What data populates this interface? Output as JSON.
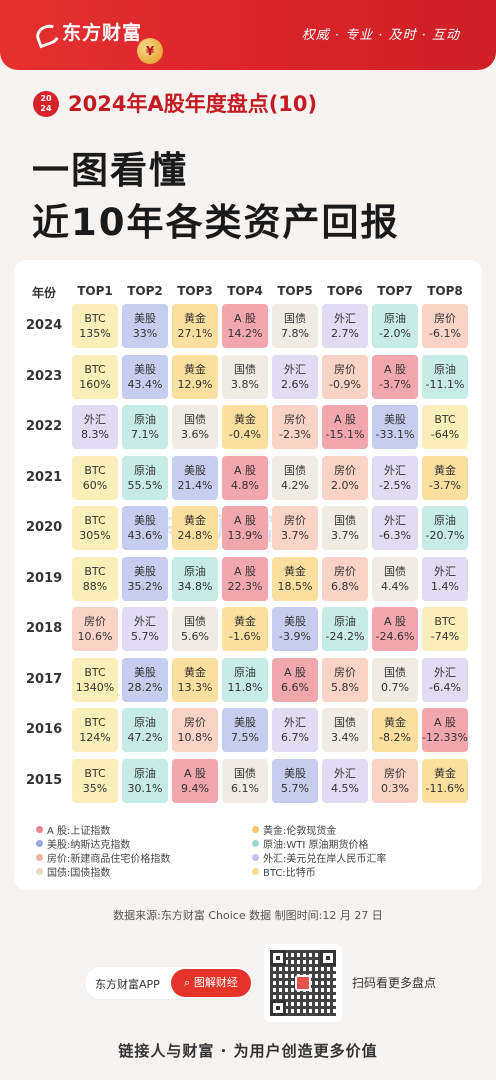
{
  "header": {
    "brand": "东方财富",
    "slogan": "权威 · 专业 · 及时 · 互动",
    "badge_top": "20",
    "badge_bottom": "24",
    "subtitle": "2024年A股年度盘点(10)",
    "headline_line1": "一图看懂",
    "headline_line2": "近10年各类资产回报",
    "coin_glyph": "¥"
  },
  "table": {
    "year_header": "年份",
    "columns": [
      "TOP1",
      "TOP2",
      "TOP3",
      "TOP4",
      "TOP5",
      "TOP6",
      "TOP7",
      "TOP8"
    ],
    "colors": {
      "BTC": "#fbefb9",
      "美股": "#c7cdee",
      "黄金": "#fbdf9e",
      "A 股": "#f2a6ae",
      "国债": "#f1ece3",
      "外汇": "#e2dcf2",
      "原油": "#c7ece6",
      "房价": "#f9d4c6"
    },
    "rows": [
      {
        "year": "2024",
        "cells": [
          [
            "BTC",
            "135%"
          ],
          [
            "美股",
            "33%"
          ],
          [
            "黄金",
            "27.1%"
          ],
          [
            "A 股",
            "14.2%"
          ],
          [
            "国债",
            "7.8%"
          ],
          [
            "外汇",
            "2.7%"
          ],
          [
            "原油",
            "-2.0%"
          ],
          [
            "房价",
            "-6.1%"
          ]
        ]
      },
      {
        "year": "2023",
        "cells": [
          [
            "BTC",
            "160%"
          ],
          [
            "美股",
            "43.4%"
          ],
          [
            "黄金",
            "12.9%"
          ],
          [
            "国债",
            "3.8%"
          ],
          [
            "外汇",
            "2.6%"
          ],
          [
            "房价",
            "-0.9%"
          ],
          [
            "A 股",
            "-3.7%"
          ],
          [
            "原油",
            "-11.1%"
          ]
        ]
      },
      {
        "year": "2022",
        "cells": [
          [
            "外汇",
            "8.3%"
          ],
          [
            "原油",
            "7.1%"
          ],
          [
            "国债",
            "3.6%"
          ],
          [
            "黄金",
            "-0.4%"
          ],
          [
            "房价",
            "-2.3%"
          ],
          [
            "A 股",
            "-15.1%"
          ],
          [
            "美股",
            "-33.1%"
          ],
          [
            "BTC",
            "-64%"
          ]
        ]
      },
      {
        "year": "2021",
        "cells": [
          [
            "BTC",
            "60%"
          ],
          [
            "原油",
            "55.5%"
          ],
          [
            "美股",
            "21.4%"
          ],
          [
            "A 股",
            "4.8%"
          ],
          [
            "国债",
            "4.2%"
          ],
          [
            "房价",
            "2.0%"
          ],
          [
            "外汇",
            "-2.5%"
          ],
          [
            "黄金",
            "-3.7%"
          ]
        ]
      },
      {
        "year": "2020",
        "cells": [
          [
            "BTC",
            "305%"
          ],
          [
            "美股",
            "43.6%"
          ],
          [
            "黄金",
            "24.8%"
          ],
          [
            "A 股",
            "13.9%"
          ],
          [
            "房价",
            "3.7%"
          ],
          [
            "国债",
            "3.7%"
          ],
          [
            "外汇",
            "-6.3%"
          ],
          [
            "原油",
            "-20.7%"
          ]
        ]
      },
      {
        "year": "2019",
        "cells": [
          [
            "BTC",
            "88%"
          ],
          [
            "美股",
            "35.2%"
          ],
          [
            "原油",
            "34.8%"
          ],
          [
            "A 股",
            "22.3%"
          ],
          [
            "黄金",
            "18.5%"
          ],
          [
            "房价",
            "6.8%"
          ],
          [
            "国债",
            "4.4%"
          ],
          [
            "外汇",
            "1.4%"
          ]
        ]
      },
      {
        "year": "2018",
        "cells": [
          [
            "房价",
            "10.6%"
          ],
          [
            "外汇",
            "5.7%"
          ],
          [
            "国债",
            "5.6%"
          ],
          [
            "黄金",
            "-1.6%"
          ],
          [
            "美股",
            "-3.9%"
          ],
          [
            "原油",
            "-24.2%"
          ],
          [
            "A 股",
            "-24.6%"
          ],
          [
            "BTC",
            "-74%"
          ]
        ]
      },
      {
        "year": "2017",
        "cells": [
          [
            "BTC",
            "1340%"
          ],
          [
            "美股",
            "28.2%"
          ],
          [
            "黄金",
            "13.3%"
          ],
          [
            "原油",
            "11.8%"
          ],
          [
            "A 股",
            "6.6%"
          ],
          [
            "房价",
            "5.8%"
          ],
          [
            "国债",
            "0.7%"
          ],
          [
            "外汇",
            "-6.4%"
          ]
        ]
      },
      {
        "year": "2016",
        "cells": [
          [
            "BTC",
            "124%"
          ],
          [
            "原油",
            "47.2%"
          ],
          [
            "房价",
            "10.8%"
          ],
          [
            "美股",
            "7.5%"
          ],
          [
            "外汇",
            "6.7%"
          ],
          [
            "国债",
            "3.4%"
          ],
          [
            "黄金",
            "-8.2%"
          ],
          [
            "A 股",
            "-12.33%"
          ]
        ]
      },
      {
        "year": "2015",
        "cells": [
          [
            "BTC",
            "35%"
          ],
          [
            "原油",
            "30.1%"
          ],
          [
            "A 股",
            "9.4%"
          ],
          [
            "国债",
            "6.1%"
          ],
          [
            "美股",
            "5.7%"
          ],
          [
            "外汇",
            "4.5%"
          ],
          [
            "房价",
            "0.3%"
          ],
          [
            "黄金",
            "-11.6%"
          ]
        ]
      }
    ],
    "watermark": "东方财富"
  },
  "legend": [
    {
      "key": "A 股",
      "text": "A 股:上证指数",
      "color": "#e8868f"
    },
    {
      "key": "美股",
      "text": "美股:纳斯达克指数",
      "color": "#9aa6e0"
    },
    {
      "key": "房价",
      "text": "房价:新建商品住宅价格指数",
      "color": "#f2b19c"
    },
    {
      "key": "国债",
      "text": "国债:国债指数",
      "color": "#e6dccb"
    },
    {
      "key": "黄金",
      "text": "黄金:伦敦现货金",
      "color": "#f6c766"
    },
    {
      "key": "原油",
      "text": "原油:WTI 原油期货价格",
      "color": "#9ad8cc"
    },
    {
      "key": "外汇",
      "text": "外汇:美元兑在岸人民币汇率",
      "color": "#c7bde8"
    },
    {
      "key": "BTC",
      "text": "BTC:比特币",
      "color": "#f5e089"
    }
  ],
  "source": "数据来源:东方财富 Choice 数据    制图时间:12 月 27 日",
  "bottom": {
    "app_name": "东方财富APP",
    "search_label": "图解财经",
    "scan_text": "扫码看更多盘点",
    "footer": "链接人与财富 · 为用户创造更多价值"
  }
}
